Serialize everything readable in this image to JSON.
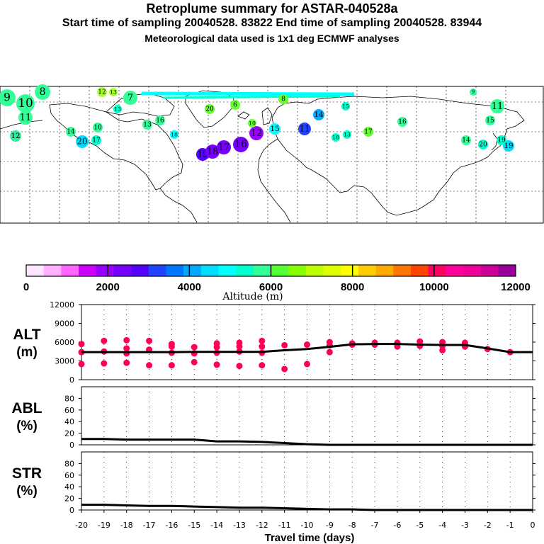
{
  "header": {
    "title": "Retroplume summary for ASTAR-040528a",
    "sampling_line": "Start time of sampling 20040528. 83822     End time of sampling 20040528. 83944",
    "met_line": "Meteorological data used is 1x1 deg ECMWF analyses"
  },
  "map": {
    "labels": [
      {
        "t": "9",
        "c": "#33ff99"
      },
      {
        "t": "10",
        "c": "#33ff99"
      },
      {
        "t": "8",
        "c": "#33ff99"
      },
      {
        "t": "11",
        "c": "#33ff99"
      },
      {
        "t": "12",
        "c": "#33ee99"
      },
      {
        "t": "7",
        "c": "#33ff99"
      },
      {
        "t": "12",
        "c": "#aaff33"
      },
      {
        "t": "13",
        "c": "#aaff33"
      },
      {
        "t": "13",
        "c": "#00ffcc"
      },
      {
        "t": "8",
        "c": "#66ff33"
      },
      {
        "t": "6",
        "c": "#66ff33"
      },
      {
        "t": "20",
        "c": "#66ff33"
      },
      {
        "t": "13",
        "c": "#33ff99"
      },
      {
        "t": "14",
        "c": "#33ff99"
      },
      {
        "t": "10",
        "c": "#33ff99"
      },
      {
        "t": "16",
        "c": "#33ff99"
      },
      {
        "t": "17",
        "c": "#00ffcc"
      },
      {
        "t": "18",
        "c": "#00ffff"
      },
      {
        "t": "20",
        "c": "#00ddff"
      },
      {
        "t": "15",
        "c": "#00ffff"
      },
      {
        "t": "19",
        "c": "#5500ff"
      },
      {
        "t": "18",
        "c": "#7700ff"
      },
      {
        "t": "17",
        "c": "#7700ff"
      },
      {
        "t": "16",
        "c": "#7700ff"
      },
      {
        "t": "12",
        "c": "#9900ff"
      },
      {
        "t": "11",
        "c": "#2244ff"
      },
      {
        "t": "14",
        "c": "#00aaff"
      },
      {
        "t": "10",
        "c": "#66ff33"
      },
      {
        "t": "15",
        "c": "#00ffcc"
      },
      {
        "t": "16",
        "c": "#33ff99"
      },
      {
        "t": "17",
        "c": "#66ff33"
      },
      {
        "t": "11",
        "c": "#33ff99"
      },
      {
        "t": "15",
        "c": "#33ff99"
      },
      {
        "t": "14",
        "c": "#33ff99"
      },
      {
        "t": "20",
        "c": "#00ffcc"
      },
      {
        "t": "19",
        "c": "#00ddff"
      },
      {
        "t": "13",
        "c": "#00ffcc"
      },
      {
        "t": "9",
        "c": "#33ff99"
      },
      {
        "t": "19",
        "c": "#00ffcc"
      },
      {
        "t": "18",
        "c": "#00ffcc"
      }
    ]
  },
  "colorbar": {
    "colors": [
      "#ffe6ff",
      "#ffb0ff",
      "#ff66ff",
      "#cc00ff",
      "#9900ff",
      "#7700ff",
      "#5500ff",
      "#2244ff",
      "#0077ff",
      "#00aaff",
      "#00ddff",
      "#00ffff",
      "#00ffcc",
      "#33ff99",
      "#55ff33",
      "#88ff00",
      "#bbff00",
      "#ddff00",
      "#ffff00",
      "#ffcc00",
      "#ffaa00",
      "#ff7700",
      "#ff4400",
      "#ff0066",
      "#ff0099",
      "#ee0099",
      "#cc0099",
      "#990099"
    ],
    "tick_labels": [
      "0",
      "2000",
      "4000",
      "6000",
      "8000",
      "10000",
      "12000"
    ],
    "label": "Altitude (m)"
  },
  "panels": {
    "alt": {
      "name": "ALT",
      "unit": "(m)"
    },
    "abl": {
      "name": "ABL",
      "unit": "(%)"
    },
    "str": {
      "name": "STR",
      "unit": "(%)"
    }
  },
  "x_axis": {
    "label": "Travel time (days)",
    "ticks": [
      "-20",
      "-19",
      "-18",
      "-17",
      "-16",
      "-15",
      "-14",
      "-13",
      "-12",
      "-11",
      "-10",
      "-9",
      "-8",
      "-7",
      "-6",
      "-5",
      "-4",
      "-3",
      "-2",
      "-1",
      "0"
    ]
  },
  "chart_data": [
    {
      "type": "scatter",
      "title": "ALT (m)",
      "xlabel": "Travel time (days)",
      "ylabel": "Altitude (m)",
      "xlim": [
        -20,
        0
      ],
      "ylim": [
        0,
        12000
      ],
      "y_ticks": [
        "0",
        "3000",
        "6000",
        "9000",
        "12000"
      ],
      "clusters": [
        {
          "x": -20,
          "y": 5700
        },
        {
          "x": -20,
          "y": 4400
        },
        {
          "x": -20,
          "y": 2500
        },
        {
          "x": -19,
          "y": 6200
        },
        {
          "x": -19,
          "y": 4500
        },
        {
          "x": -19,
          "y": 2600
        },
        {
          "x": -18,
          "y": 6300
        },
        {
          "x": -18,
          "y": 5000
        },
        {
          "x": -18,
          "y": 4200
        },
        {
          "x": -18,
          "y": 2700
        },
        {
          "x": -17,
          "y": 6200
        },
        {
          "x": -17,
          "y": 4800
        },
        {
          "x": -17,
          "y": 2300
        },
        {
          "x": -16,
          "y": 5700
        },
        {
          "x": -16,
          "y": 5300
        },
        {
          "x": -16,
          "y": 4300
        },
        {
          "x": -16,
          "y": 2300
        },
        {
          "x": -15,
          "y": 5200
        },
        {
          "x": -15,
          "y": 4200
        },
        {
          "x": -15,
          "y": 2800
        },
        {
          "x": -14,
          "y": 5800
        },
        {
          "x": -14,
          "y": 5200
        },
        {
          "x": -14,
          "y": 4300
        },
        {
          "x": -14,
          "y": 2400
        },
        {
          "x": -13,
          "y": 5900
        },
        {
          "x": -13,
          "y": 5300
        },
        {
          "x": -13,
          "y": 4500
        },
        {
          "x": -13,
          "y": 2200
        },
        {
          "x": -12,
          "y": 6200
        },
        {
          "x": -12,
          "y": 5300
        },
        {
          "x": -12,
          "y": 4300
        },
        {
          "x": -12,
          "y": 2300
        },
        {
          "x": -11,
          "y": 5500
        },
        {
          "x": -11,
          "y": 1700
        },
        {
          "x": -10,
          "y": 5600
        },
        {
          "x": -10,
          "y": 2500
        },
        {
          "x": -9,
          "y": 6000
        },
        {
          "x": -9,
          "y": 5500
        },
        {
          "x": -9,
          "y": 4400
        },
        {
          "x": -8,
          "y": 5800
        },
        {
          "x": -8,
          "y": 5600
        },
        {
          "x": -7,
          "y": 5900
        },
        {
          "x": -7,
          "y": 5600
        },
        {
          "x": -6,
          "y": 5900
        },
        {
          "x": -6,
          "y": 5300
        },
        {
          "x": -5,
          "y": 6100
        },
        {
          "x": -5,
          "y": 5400
        },
        {
          "x": -4,
          "y": 6000
        },
        {
          "x": -4,
          "y": 5400
        },
        {
          "x": -4,
          "y": 4700
        },
        {
          "x": -3,
          "y": 5900
        },
        {
          "x": -3,
          "y": 5300
        },
        {
          "x": -2,
          "y": 4900
        },
        {
          "x": -1,
          "y": 4400
        }
      ],
      "mean_line": {
        "x": [
          -20,
          -19,
          -18,
          -17,
          -16,
          -15,
          -14,
          -13,
          -12,
          -11,
          -10,
          -9,
          -8,
          -7,
          -6,
          -5,
          -4,
          -3,
          -2,
          -1,
          0
        ],
        "y": [
          4400,
          4400,
          4400,
          4400,
          4400,
          4450,
          4450,
          4450,
          4450,
          4700,
          4900,
          5250,
          5650,
          5700,
          5700,
          5600,
          5550,
          5550,
          5000,
          4400,
          4400
        ]
      }
    },
    {
      "type": "line",
      "title": "ABL (%)",
      "xlim": [
        -20,
        0
      ],
      "ylim": [
        0,
        100
      ],
      "y_ticks": [
        "0",
        "20",
        "40",
        "60",
        "80"
      ],
      "x": [
        -20,
        -19,
        -18,
        -17,
        -16,
        -15,
        -14,
        -13,
        -12,
        -11,
        -10,
        -9,
        -8,
        -7,
        -6,
        -5,
        -4,
        -3,
        -2,
        -1,
        0
      ],
      "y": [
        10,
        10,
        9,
        9,
        9,
        9,
        6,
        6,
        5,
        3,
        1,
        0,
        0,
        0,
        0,
        0,
        0,
        0,
        0,
        0,
        0
      ]
    },
    {
      "type": "line",
      "title": "STR (%)",
      "xlim": [
        -20,
        0
      ],
      "ylim": [
        0,
        100
      ],
      "y_ticks": [
        "0",
        "20",
        "40",
        "60",
        "80"
      ],
      "x": [
        -20,
        -19,
        -18,
        -17,
        -16,
        -15,
        -14,
        -13,
        -12,
        -11,
        -10,
        -9,
        -8,
        -7,
        -6,
        -5,
        -4,
        -3,
        -2,
        -1,
        0
      ],
      "y": [
        9,
        9,
        8,
        7,
        7,
        6,
        5,
        4,
        4,
        3,
        2,
        1,
        1,
        0,
        0,
        0,
        0,
        0,
        0,
        0,
        0
      ]
    }
  ]
}
